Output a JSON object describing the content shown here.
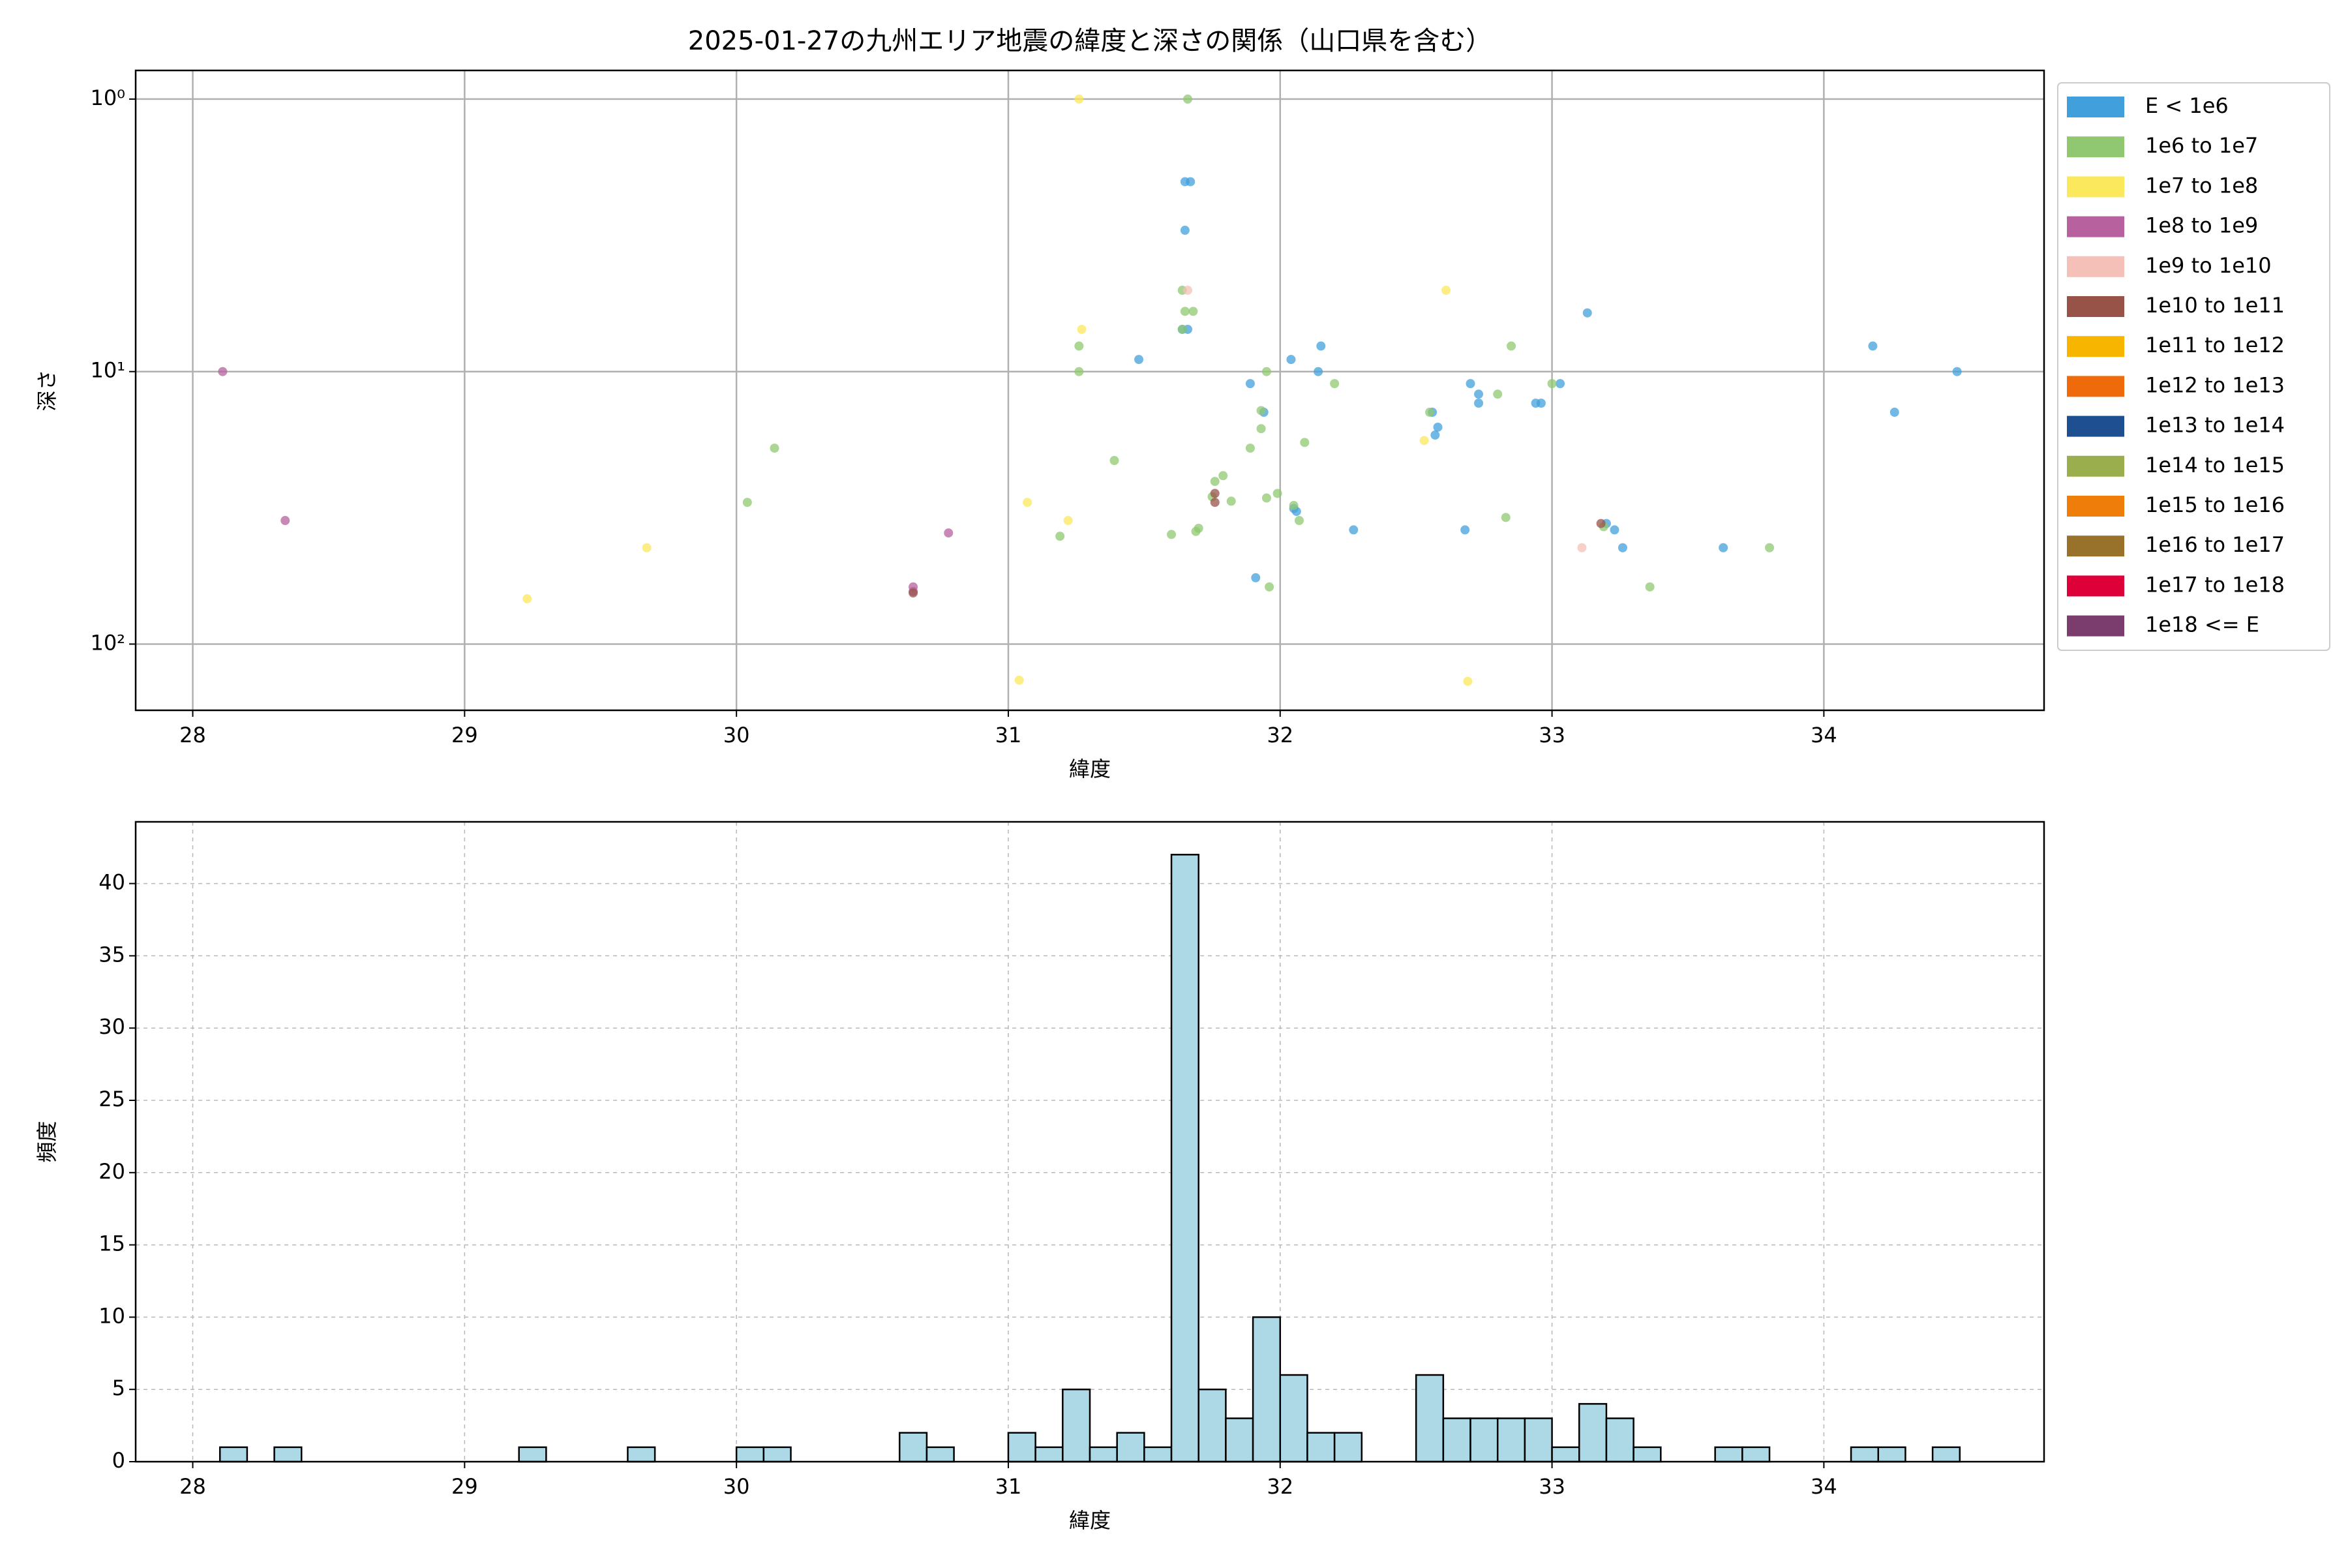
{
  "chart_data": [
    {
      "type": "scatter",
      "title": "2025-01-27の九州エリア地震の緯度と深さの関係（山口県を含む）",
      "x_label": "緯度",
      "y_label": "深さ",
      "xlim": [
        27.79,
        34.81
      ],
      "xticks": [
        28,
        29,
        30,
        31,
        32,
        33,
        34
      ],
      "ylim": [
        0.785,
        175
      ],
      "yscale": "log",
      "yinvert": true,
      "yticks": [
        {
          "value": 1,
          "label": "10⁰"
        },
        {
          "value": 10,
          "label": "10¹"
        },
        {
          "value": 100,
          "label": "10²"
        }
      ],
      "grid": true,
      "grid_style": "solid",
      "legend": "outside-right",
      "series": [
        {
          "name": "E < 1e6",
          "color": "#41a0dc",
          "x": [
            31.65,
            31.67,
            31.65,
            31.64,
            31.66,
            31.48,
            32.04,
            32.14,
            32.15,
            31.89,
            31.94,
            32.56,
            32.58,
            32.57,
            32.7,
            32.73,
            32.73,
            33.03,
            32.94,
            32.96,
            33.13,
            34.18,
            34.49,
            34.26,
            32.05,
            32.06,
            32.27,
            32.68,
            33.2,
            33.23,
            33.26,
            33.63,
            31.91
          ],
          "values": [
            2.01,
            2.01,
            3.03,
            7.0,
            7.0,
            9.03,
            9.03,
            10,
            8.06,
            11.07,
            14.1,
            14.1,
            16.0,
            17.1,
            11.07,
            12.1,
            13.06,
            11.07,
            13.06,
            13.06,
            6.09,
            8.06,
            10,
            14.1,
            31.8,
            32.6,
            38.1,
            38.1,
            36.1,
            38.1,
            44.3,
            44.3,
            57.1
          ]
        },
        {
          "name": "1e6 to 1e7",
          "color": "#8fc870",
          "x": [
            31.66,
            31.64,
            31.65,
            31.68,
            31.64,
            31.26,
            31.26,
            31.95,
            32.2,
            31.93,
            31.93,
            31.89,
            32.09,
            31.39,
            30.14,
            30.04,
            31.76,
            31.79,
            31.75,
            31.82,
            31.99,
            31.95,
            32.05,
            32.07,
            31.7,
            31.69,
            31.6,
            31.19,
            32.83,
            33.8,
            33.36,
            31.96,
            33.0,
            32.8,
            32.85,
            32.55,
            33.19
          ],
          "values": [
            1.0,
            5.03,
            6.01,
            6.01,
            7.0,
            8.06,
            10,
            10,
            11.07,
            13.9,
            16.2,
            19.1,
            18.2,
            21.2,
            19.1,
            30.2,
            25.3,
            24.1,
            28.8,
            29.9,
            28.0,
            29.1,
            31.0,
            35.2,
            37.6,
            38.6,
            39.6,
            40.2,
            34.3,
            44.3,
            61.7,
            61.7,
            11.07,
            12.1,
            8.06,
            14.1,
            37.1
          ]
        },
        {
          "name": "1e7 to 1e8",
          "color": "#fbe85c",
          "x": [
            31.26,
            31.27,
            32.61,
            31.07,
            31.22,
            29.67,
            29.23,
            31.04,
            32.69,
            32.53
          ],
          "values": [
            1.0,
            7.0,
            5.03,
            30.2,
            35.2,
            44.3,
            68.2,
            135.7,
            137,
            17.9
          ]
        },
        {
          "name": "1e8 to 1e9",
          "color": "#b7619e",
          "x": [
            28.11,
            28.34,
            30.78,
            30.65,
            30.65
          ],
          "values": [
            10,
            35.2,
            39.1,
            61.7,
            64.1
          ]
        },
        {
          "name": "1e9 to 1e10",
          "color": "#f5c0b8",
          "x": [
            31.66,
            33.11
          ],
          "values": [
            5.03,
            44.3
          ]
        },
        {
          "name": "1e10 to 1e11",
          "color": "#985349",
          "x": [
            31.76,
            30.65,
            33.18,
            31.76
          ],
          "values": [
            30.2,
            64.9,
            36.1,
            28.0
          ]
        },
        {
          "name": "1e11 to 1e12",
          "color": "#f8b500",
          "x": [],
          "values": []
        },
        {
          "name": "1e12 to 1e13",
          "color": "#ee6a0a",
          "x": [],
          "values": []
        },
        {
          "name": "1e13 to 1e14",
          "color": "#1d4f91",
          "x": [],
          "values": []
        },
        {
          "name": "1e14 to 1e15",
          "color": "#9bae4e",
          "x": [],
          "values": []
        },
        {
          "name": "1e15 to 1e16",
          "color": "#ee7d0a",
          "x": [],
          "values": []
        },
        {
          "name": "1e16 to 1e17",
          "color": "#98712a",
          "x": [],
          "values": []
        },
        {
          "name": "1e17 to 1e18",
          "color": "#de0039",
          "x": [],
          "values": []
        },
        {
          "name": "1e18 <= E",
          "color": "#7a3d6e",
          "x": [],
          "values": []
        }
      ]
    },
    {
      "type": "histogram",
      "x_label": "緯度",
      "y_label": "頻度",
      "color": "#add8e6",
      "edgecolor": "#000000",
      "xlim": [
        27.79,
        34.81
      ],
      "xticks": [
        28,
        29,
        30,
        31,
        32,
        33,
        34
      ],
      "ylim": [
        0,
        44.27
      ],
      "yticks": [
        0,
        5,
        10,
        15,
        20,
        25,
        30,
        35,
        40
      ],
      "grid": true,
      "grid_style": "dashed",
      "bins": [
        28.1,
        28.2,
        28.3,
        28.4,
        28.5,
        28.6,
        28.7,
        28.8,
        28.9,
        29.0,
        29.1,
        29.2,
        29.3,
        29.4,
        29.5,
        29.6,
        29.7,
        29.8,
        29.9,
        30.0,
        30.1,
        30.2,
        30.3,
        30.4,
        30.5,
        30.6,
        30.7,
        30.8,
        30.9,
        31.0,
        31.1,
        31.2,
        31.3,
        31.4,
        31.5,
        31.6,
        31.7,
        31.8,
        31.9,
        32.0,
        32.1,
        32.2,
        32.3,
        32.4,
        32.5,
        32.6,
        32.7,
        32.8,
        32.9,
        33.0,
        33.1,
        33.2,
        33.3,
        33.4,
        33.5,
        33.6,
        33.7,
        33.8,
        33.9,
        34.0,
        34.1,
        34.2,
        34.3,
        34.4,
        34.5
      ],
      "values": [
        1,
        0,
        1,
        0,
        0,
        0,
        0,
        0,
        0,
        0,
        0,
        1,
        0,
        0,
        0,
        1,
        0,
        0,
        0,
        1,
        1,
        0,
        0,
        0,
        0,
        2,
        1,
        0,
        0,
        2,
        1,
        5,
        1,
        2,
        1,
        42,
        5,
        3,
        10,
        6,
        2,
        2,
        0,
        0,
        6,
        3,
        3,
        3,
        3,
        1,
        4,
        3,
        1,
        0,
        0,
        1,
        1,
        0,
        0,
        0,
        1,
        1,
        0,
        1
      ]
    }
  ]
}
